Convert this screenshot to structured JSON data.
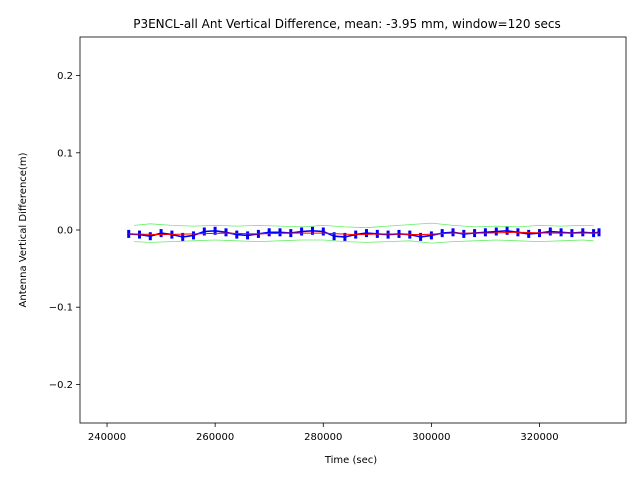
{
  "chart_data": {
    "type": "line",
    "title": "P3ENCL-all Ant Vertical Difference, mean: -3.95 mm, window=120 secs",
    "xlabel": "Time (sec)",
    "ylabel": "Antenna Vertical Difference(m)",
    "xlim": [
      235000,
      336000
    ],
    "ylim": [
      -0.25,
      0.25
    ],
    "xticks": [
      240000,
      260000,
      280000,
      300000,
      320000
    ],
    "xtick_labels": [
      "240000",
      "260000",
      "280000",
      "300000",
      "320000"
    ],
    "yticks": [
      -0.2,
      -0.1,
      0.0,
      0.1,
      0.2
    ],
    "ytick_labels": [
      "−0.2",
      "−0.1",
      "0.0",
      "0.1",
      "0.2"
    ],
    "grid": false,
    "series": [
      {
        "color": "#0000ff",
        "style": "raw",
        "x": [
          244000,
          246000,
          248000,
          250000,
          252000,
          254000,
          256000,
          258000,
          260000,
          262000,
          264000,
          266000,
          268000,
          270000,
          272000,
          274000,
          276000,
          278000,
          280000,
          282000,
          284000,
          286000,
          288000,
          290000,
          292000,
          294000,
          296000,
          298000,
          300000,
          302000,
          304000,
          306000,
          308000,
          310000,
          312000,
          314000,
          316000,
          318000,
          320000,
          322000,
          324000,
          326000,
          328000,
          330000,
          331000
        ],
        "y": [
          -0.005,
          -0.006,
          -0.008,
          -0.004,
          -0.006,
          -0.009,
          -0.007,
          -0.002,
          -0.001,
          -0.003,
          -0.006,
          -0.007,
          -0.005,
          -0.003,
          -0.003,
          -0.004,
          -0.002,
          -0.001,
          -0.002,
          -0.008,
          -0.009,
          -0.006,
          -0.004,
          -0.005,
          -0.006,
          -0.005,
          -0.006,
          -0.009,
          -0.007,
          -0.004,
          -0.003,
          -0.005,
          -0.004,
          -0.003,
          -0.002,
          -0.001,
          -0.003,
          -0.005,
          -0.004,
          -0.002,
          -0.003,
          -0.004,
          -0.003,
          -0.004,
          -0.003
        ]
      },
      {
        "color": "#ff0000",
        "style": "mean",
        "x": [
          244000,
          250000,
          256000,
          262000,
          268000,
          274000,
          280000,
          286000,
          292000,
          298000,
          304000,
          310000,
          316000,
          322000,
          328000,
          331000
        ],
        "y": [
          -0.005,
          -0.006,
          -0.005,
          -0.004,
          -0.005,
          -0.004,
          -0.004,
          -0.006,
          -0.005,
          -0.006,
          -0.004,
          -0.004,
          -0.003,
          -0.004,
          -0.004,
          -0.004
        ]
      },
      {
        "color": "#66ee66",
        "style": "upper",
        "x": [
          245000,
          248000,
          252000,
          256000,
          260000,
          264000,
          268000,
          272000,
          276000,
          280000,
          284000,
          288000,
          292000,
          296000,
          300000,
          304000,
          308000,
          312000,
          316000,
          320000,
          324000,
          328000,
          330000
        ],
        "y": [
          0.006,
          0.008,
          0.006,
          0.005,
          0.006,
          0.005,
          0.006,
          0.005,
          0.004,
          0.006,
          0.004,
          0.003,
          0.005,
          0.007,
          0.009,
          0.006,
          0.004,
          0.005,
          0.004,
          0.006,
          0.005,
          0.006,
          0.006
        ]
      },
      {
        "color": "#66ee66",
        "style": "lower",
        "x": [
          245000,
          248000,
          252000,
          256000,
          260000,
          264000,
          268000,
          272000,
          276000,
          280000,
          284000,
          288000,
          292000,
          296000,
          300000,
          304000,
          308000,
          312000,
          316000,
          320000,
          324000,
          328000,
          330000
        ],
        "y": [
          -0.015,
          -0.016,
          -0.015,
          -0.014,
          -0.013,
          -0.014,
          -0.015,
          -0.014,
          -0.013,
          -0.013,
          -0.015,
          -0.016,
          -0.015,
          -0.014,
          -0.017,
          -0.015,
          -0.014,
          -0.013,
          -0.014,
          -0.015,
          -0.014,
          -0.013,
          -0.014
        ]
      }
    ]
  }
}
